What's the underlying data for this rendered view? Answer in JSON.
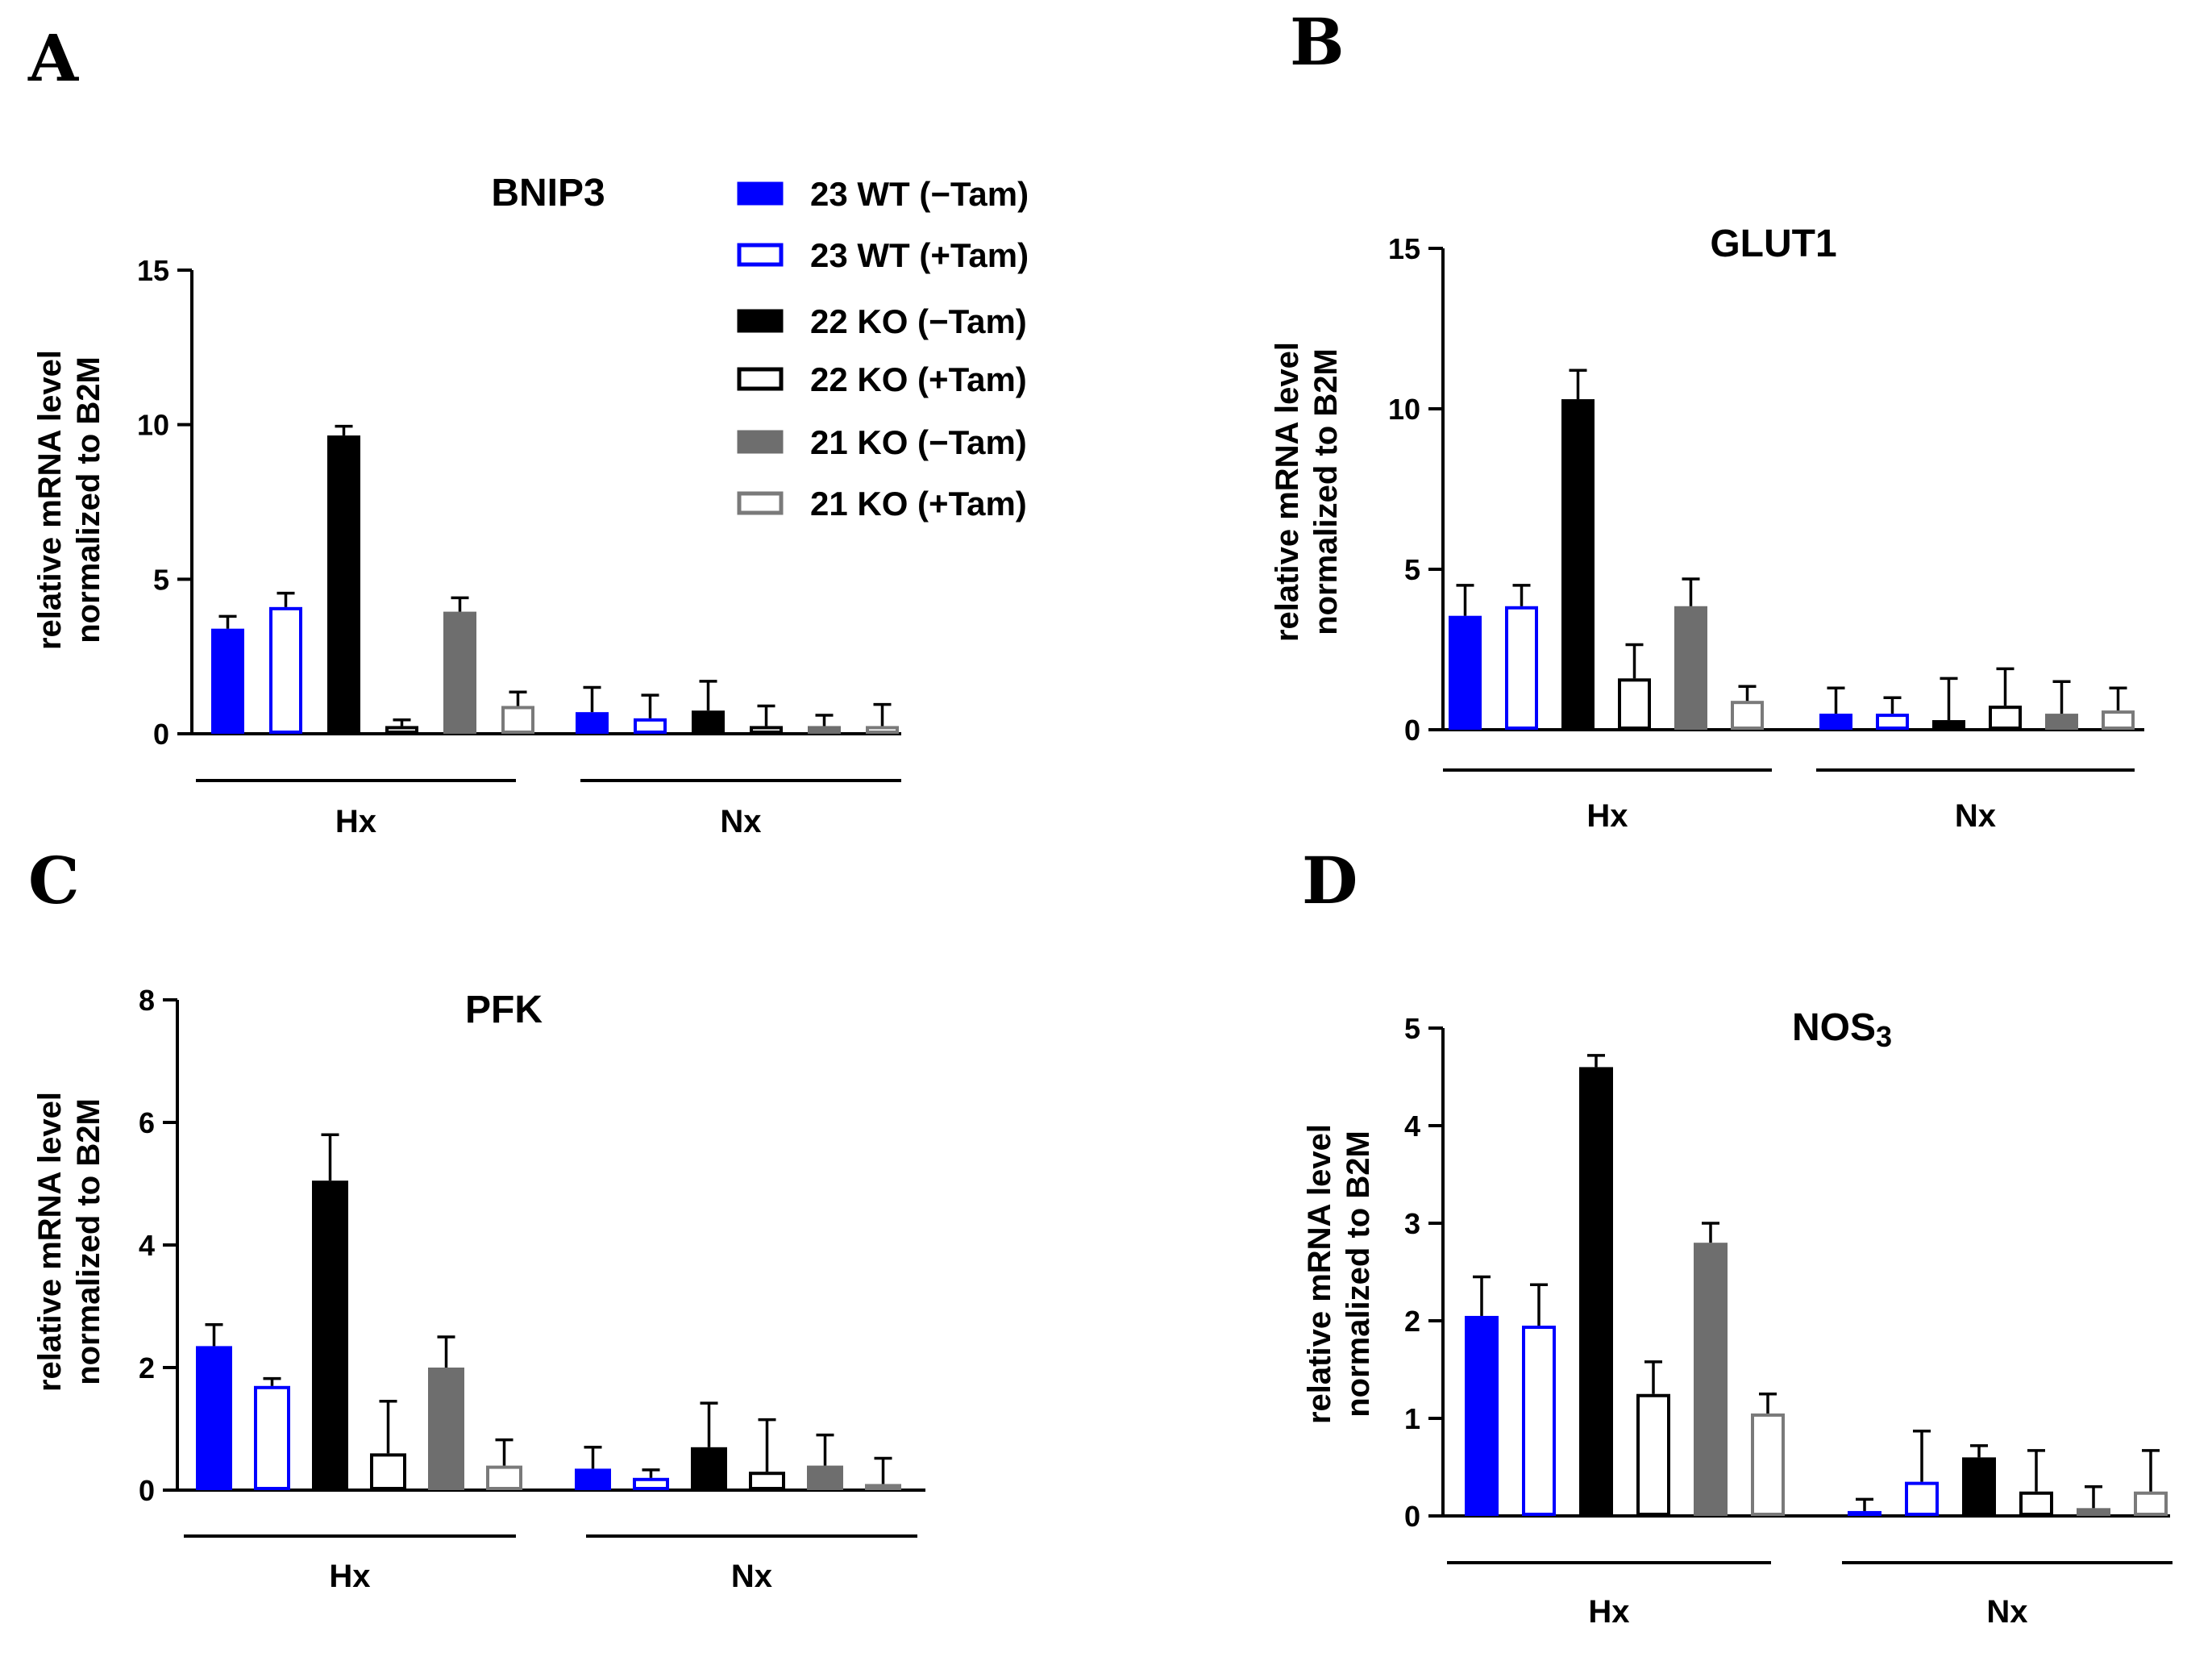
{
  "styles": {
    "23 WT (−Tam)": {
      "fill": "#0000ff",
      "stroke": "#0000ff"
    },
    "23 WT (+Tam)": {
      "fill": "#ffffff",
      "stroke": "#0000ff"
    },
    "22 KO (−Tam)": {
      "fill": "#000000",
      "stroke": "#000000"
    },
    "22 KO (+Tam)": {
      "fill": "#ffffff",
      "stroke": "#000000"
    },
    "21 KO (−Tam)": {
      "fill": "#6e6e6e",
      "stroke": "#6e6e6e"
    },
    "21 KO (+Tam)": {
      "fill": "#ffffff",
      "stroke": "#7a7a7a"
    }
  },
  "legend": [
    "23 WT (−Tam)",
    "23 WT (+Tam)",
    "22 KO (−Tam)",
    "22 KO (+Tam)",
    "21 KO (−Tam)",
    "21 KO (+Tam)"
  ],
  "chart_data": [
    {
      "panel": "A",
      "type": "bar",
      "title": "BNIP3",
      "title_sub": "",
      "ylabel": [
        "relative mRNA level",
        "normalized to B2M"
      ],
      "ylim": [
        0,
        15
      ],
      "yticks": [
        0,
        5,
        10,
        15
      ],
      "groups": [
        "Hx",
        "Nx"
      ],
      "series": [
        {
          "name": "23 WT (−Tam)",
          "values": [
            3.4,
            0.7
          ],
          "errors": [
            0.4,
            0.8
          ]
        },
        {
          "name": "23 WT (+Tam)",
          "values": [
            4.1,
            0.5
          ],
          "errors": [
            0.45,
            0.75
          ]
        },
        {
          "name": "22 KO (−Tam)",
          "values": [
            9.65,
            0.75
          ],
          "errors": [
            0.3,
            0.95
          ]
        },
        {
          "name": "22 KO (+Tam)",
          "values": [
            0.25,
            0.25
          ],
          "errors": [
            0.2,
            0.65
          ]
        },
        {
          "name": "21 KO (−Tam)",
          "values": [
            3.95,
            0.25
          ],
          "errors": [
            0.45,
            0.35
          ]
        },
        {
          "name": "21 KO (+Tam)",
          "values": [
            0.9,
            0.25
          ],
          "errors": [
            0.45,
            0.7
          ]
        }
      ]
    },
    {
      "panel": "B",
      "type": "bar",
      "title": "GLUT1",
      "title_sub": "",
      "ylabel": [
        "relative mRNA level",
        "normalized to B2M"
      ],
      "ylim": [
        0,
        15
      ],
      "yticks": [
        0,
        5,
        10,
        15
      ],
      "groups": [
        "Hx",
        "Nx"
      ],
      "series": [
        {
          "name": "23 WT (−Tam)",
          "values": [
            3.55,
            0.5
          ],
          "errors": [
            0.95,
            0.8
          ]
        },
        {
          "name": "23 WT (+Tam)",
          "values": [
            3.85,
            0.5
          ],
          "errors": [
            0.65,
            0.5
          ]
        },
        {
          "name": "22 KO (−Tam)",
          "values": [
            10.3,
            0.3
          ],
          "errors": [
            0.9,
            1.3
          ]
        },
        {
          "name": "22 KO (+Tam)",
          "values": [
            1.6,
            0.75
          ],
          "errors": [
            1.05,
            1.15
          ]
        },
        {
          "name": "21 KO (−Tam)",
          "values": [
            3.85,
            0.5
          ],
          "errors": [
            0.85,
            1.0
          ]
        },
        {
          "name": "21 KO (+Tam)",
          "values": [
            0.9,
            0.6
          ],
          "errors": [
            0.45,
            0.7
          ]
        }
      ]
    },
    {
      "panel": "C",
      "type": "bar",
      "title": "PFK",
      "title_sub": "",
      "ylabel": [
        "relative mRNA level",
        "normalized to B2M"
      ],
      "ylim": [
        0,
        8
      ],
      "yticks": [
        0,
        2,
        4,
        6,
        8
      ],
      "groups": [
        "Hx",
        "Nx"
      ],
      "series": [
        {
          "name": "23 WT (−Tam)",
          "values": [
            2.35,
            0.35
          ],
          "errors": [
            0.35,
            0.35
          ]
        },
        {
          "name": "23 WT (+Tam)",
          "values": [
            1.7,
            0.2
          ],
          "errors": [
            0.12,
            0.13
          ]
        },
        {
          "name": "22 KO (−Tam)",
          "values": [
            5.05,
            0.7
          ],
          "errors": [
            0.75,
            0.72
          ]
        },
        {
          "name": "22 KO (+Tam)",
          "values": [
            0.6,
            0.3
          ],
          "errors": [
            0.85,
            0.85
          ]
        },
        {
          "name": "21 KO (−Tam)",
          "values": [
            2.0,
            0.4
          ],
          "errors": [
            0.5,
            0.5
          ]
        },
        {
          "name": "21 KO (+Tam)",
          "values": [
            0.4,
            0.1
          ],
          "errors": [
            0.42,
            0.42
          ]
        }
      ]
    },
    {
      "panel": "D",
      "type": "bar",
      "title": "NOS",
      "title_sub": "3",
      "ylabel": [
        "relative mRNA level",
        "normalized to B2M"
      ],
      "ylim": [
        0,
        5
      ],
      "yticks": [
        0,
        1,
        2,
        3,
        4,
        5
      ],
      "groups": [
        "Hx",
        "Nx"
      ],
      "series": [
        {
          "name": "23 WT (−Tam)",
          "values": [
            2.05,
            0.05
          ],
          "errors": [
            0.4,
            0.12
          ]
        },
        {
          "name": "23 WT (+Tam)",
          "values": [
            1.95,
            0.35
          ],
          "errors": [
            0.42,
            0.52
          ]
        },
        {
          "name": "22 KO (−Tam)",
          "values": [
            4.6,
            0.6
          ],
          "errors": [
            0.12,
            0.12
          ]
        },
        {
          "name": "22 KO (+Tam)",
          "values": [
            1.25,
            0.25
          ],
          "errors": [
            0.33,
            0.42
          ]
        },
        {
          "name": "21 KO (−Tam)",
          "values": [
            2.8,
            0.08
          ],
          "errors": [
            0.2,
            0.22
          ]
        },
        {
          "name": "21 KO (+Tam)",
          "values": [
            1.05,
            0.25
          ],
          "errors": [
            0.2,
            0.42
          ]
        }
      ]
    }
  ]
}
